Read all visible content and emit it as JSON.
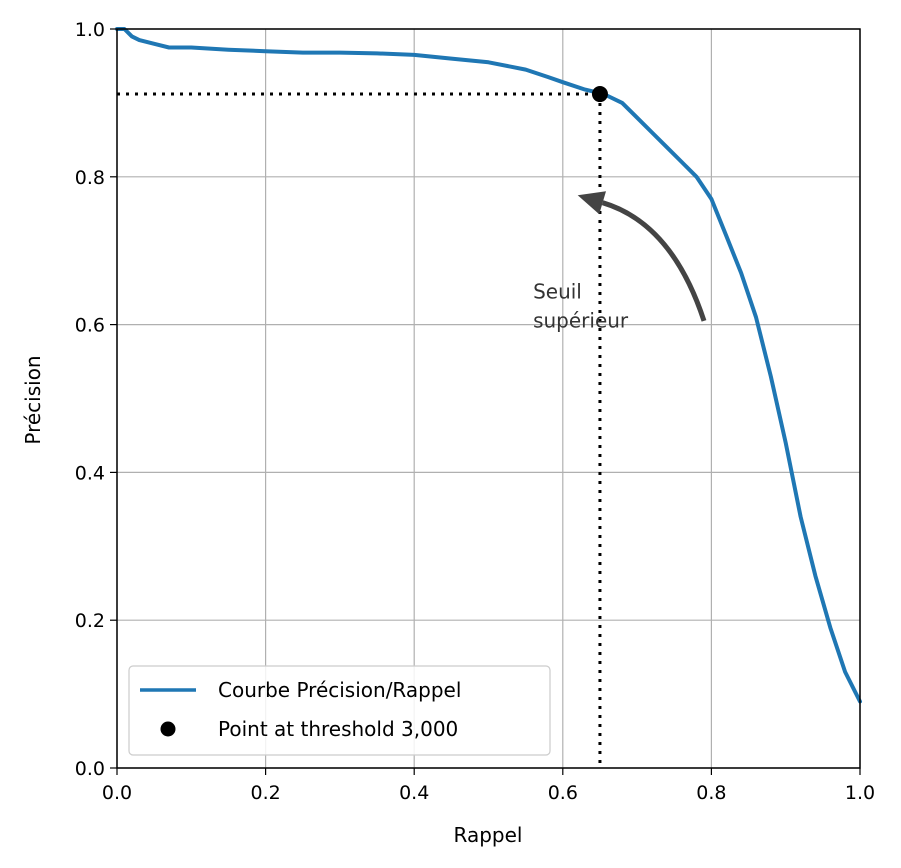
{
  "chart_data": {
    "type": "line",
    "xlabel": "Rappel",
    "ylabel": "Précision",
    "xlim": [
      0,
      1
    ],
    "ylim": [
      0,
      1
    ],
    "grid": true,
    "x_ticks": [
      "0.0",
      "0.2",
      "0.4",
      "0.6",
      "0.8",
      "1.0"
    ],
    "y_ticks": [
      "0.0",
      "0.2",
      "0.4",
      "0.6",
      "0.8",
      "1.0"
    ],
    "legend_position": "lower-left",
    "series": [
      {
        "name": "Courbe Précision/Rappel",
        "color": "#1f77b4",
        "x": [
          0.0,
          0.01,
          0.02,
          0.03,
          0.05,
          0.07,
          0.1,
          0.15,
          0.2,
          0.25,
          0.3,
          0.35,
          0.4,
          0.45,
          0.5,
          0.55,
          0.58,
          0.6,
          0.63,
          0.655,
          0.68,
          0.7,
          0.72,
          0.74,
          0.76,
          0.78,
          0.8,
          0.82,
          0.84,
          0.86,
          0.88,
          0.9,
          0.92,
          0.94,
          0.96,
          0.98,
          1.0
        ],
        "y": [
          1.0,
          1.0,
          0.99,
          0.985,
          0.98,
          0.975,
          0.975,
          0.972,
          0.97,
          0.968,
          0.968,
          0.967,
          0.965,
          0.96,
          0.955,
          0.945,
          0.935,
          0.928,
          0.918,
          0.912,
          0.9,
          0.88,
          0.86,
          0.84,
          0.82,
          0.8,
          0.77,
          0.72,
          0.67,
          0.61,
          0.53,
          0.44,
          0.34,
          0.26,
          0.19,
          0.13,
          0.09
        ]
      }
    ],
    "threshold_point": {
      "name": "Point at threshold 3,000",
      "x": 0.65,
      "y": 0.912,
      "color": "#000000"
    },
    "annotation": {
      "text_lines": [
        "Seuil",
        "supérieur"
      ],
      "text_x": 0.56,
      "text_y": 0.635,
      "arrow_from": [
        0.79,
        0.605
      ],
      "arrow_to": [
        0.62,
        0.775
      ],
      "color": "#444444"
    }
  }
}
